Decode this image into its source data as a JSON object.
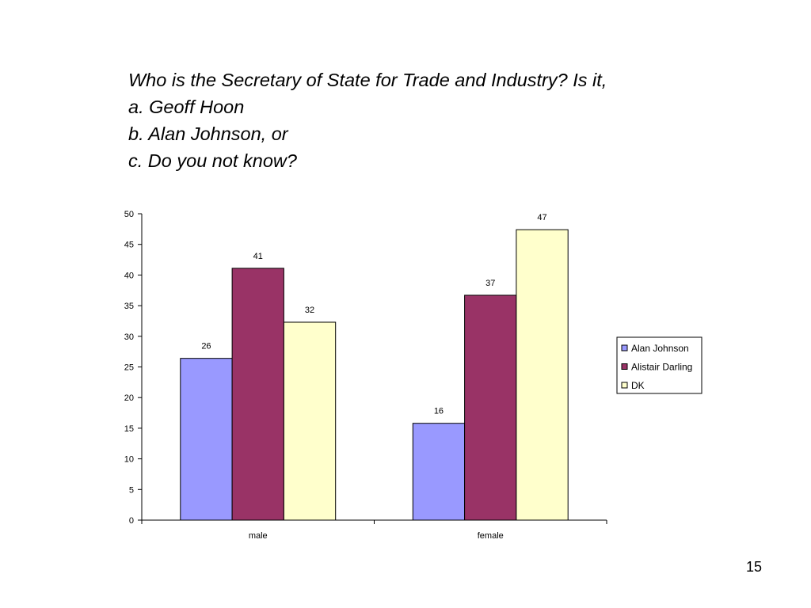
{
  "slide": {
    "title_lines": [
      "Who is the Secretary of State for Trade and Industry? Is it,",
      "a. Geoff Hoon",
      "b. Alan Johnson, or",
      "c. Do you not know?"
    ],
    "page_number": "15"
  },
  "chart_data": {
    "type": "bar",
    "categories": [
      "male",
      "female"
    ],
    "series": [
      {
        "name": "Alan Johnson",
        "values": [
          26,
          16
        ],
        "display_values": [
          26.4,
          15.8
        ],
        "color": "#9999FF"
      },
      {
        "name": "Alistair Darling",
        "values": [
          41,
          37
        ],
        "display_values": [
          41.1,
          36.7
        ],
        "color": "#993366"
      },
      {
        "name": "DK",
        "values": [
          32,
          47
        ],
        "display_values": [
          32.3,
          47.4
        ],
        "color": "#FFFFCC"
      }
    ],
    "ylim": [
      0,
      50
    ],
    "yticks": [
      0,
      5,
      10,
      15,
      20,
      25,
      30,
      35,
      40,
      45,
      50
    ],
    "grid": false,
    "legend": "right"
  }
}
